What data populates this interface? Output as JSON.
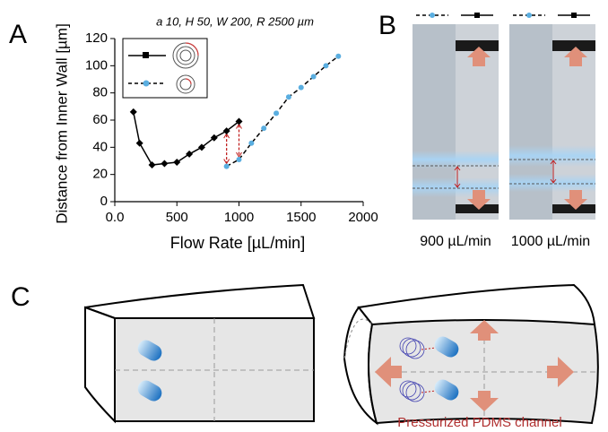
{
  "chart_data": {
    "type": "line",
    "annotation": "a 10, H 50, W 200, R 2500 µm",
    "xlabel": "Flow Rate [µL/min]",
    "ylabel": "Distance from Inner Wall [µm]",
    "xlim": [
      0,
      2000
    ],
    "xticks": [
      {
        "value": 0,
        "label": "0.0"
      },
      500,
      1000,
      1500,
      2000
    ],
    "ylim": [
      0,
      120
    ],
    "yticks": [
      0,
      20,
      40,
      60,
      80,
      100,
      120
    ],
    "series": [
      {
        "color": "#000000",
        "marker": "diamond",
        "dash": false,
        "x": [
          150,
          200,
          300,
          400,
          500,
          600,
          700,
          800,
          900,
          1000
        ],
        "values": [
          66,
          43,
          27,
          28,
          29,
          35,
          40,
          47,
          52,
          59
        ]
      },
      {
        "color": "#5aaee0",
        "marker": "circle",
        "dash": true,
        "x": [
          900,
          1000,
          1100,
          1200,
          1300,
          1400,
          1500,
          1600,
          1700,
          1800
        ],
        "values": [
          26,
          31,
          43,
          54,
          65,
          77,
          84,
          92,
          100,
          107
        ]
      }
    ]
  },
  "panel_labels": [
    "A",
    "B",
    "C"
  ],
  "images": {
    "labels": [
      "900 µL/min",
      "1000 µL/min"
    ]
  },
  "diagram": {
    "caption": "Pressurized PDMS channel"
  }
}
